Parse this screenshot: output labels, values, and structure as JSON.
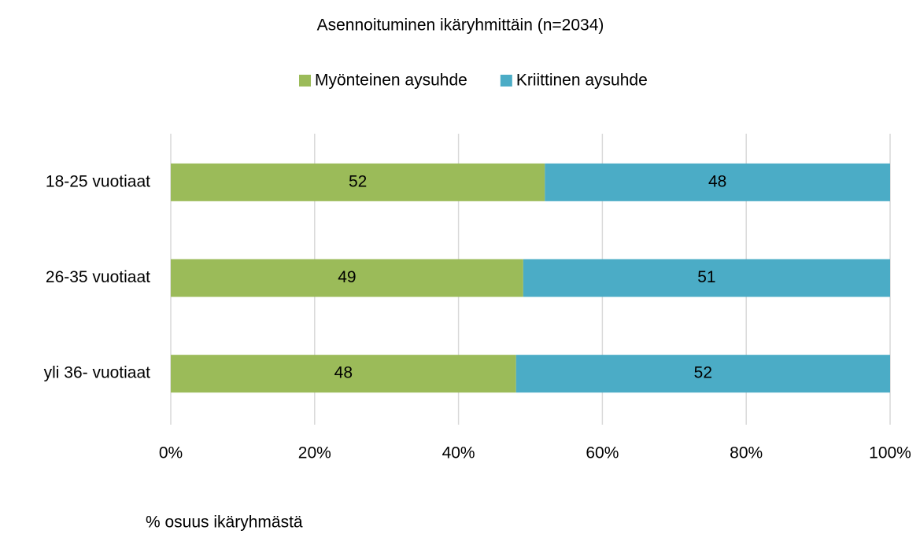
{
  "chart_data": {
    "type": "bar",
    "orientation": "horizontal",
    "stacked": true,
    "title": "Asennoituminen ikäryhmittäin (n=2034)",
    "x_label": "% osuus ikäryhmästä",
    "categories": [
      "18-25 vuotiaat",
      "26-35 vuotiaat",
      "yli 36- vuotiaat"
    ],
    "series": [
      {
        "name": "Myönteinen aysuhde",
        "color": "#9bbb59",
        "values": [
          52,
          49,
          48
        ]
      },
      {
        "name": "Kriittinen aysuhde",
        "color": "#4bacc6",
        "values": [
          48,
          51,
          52
        ]
      }
    ],
    "xlim": [
      0,
      100
    ],
    "xticks": [
      {
        "value": 0,
        "label": "0%"
      },
      {
        "value": 20,
        "label": "20%"
      },
      {
        "value": 40,
        "label": "40%"
      },
      {
        "value": 60,
        "label": "60%"
      },
      {
        "value": 80,
        "label": "80%"
      },
      {
        "value": 100,
        "label": "100%"
      }
    ],
    "grid": true,
    "legend": "top"
  }
}
